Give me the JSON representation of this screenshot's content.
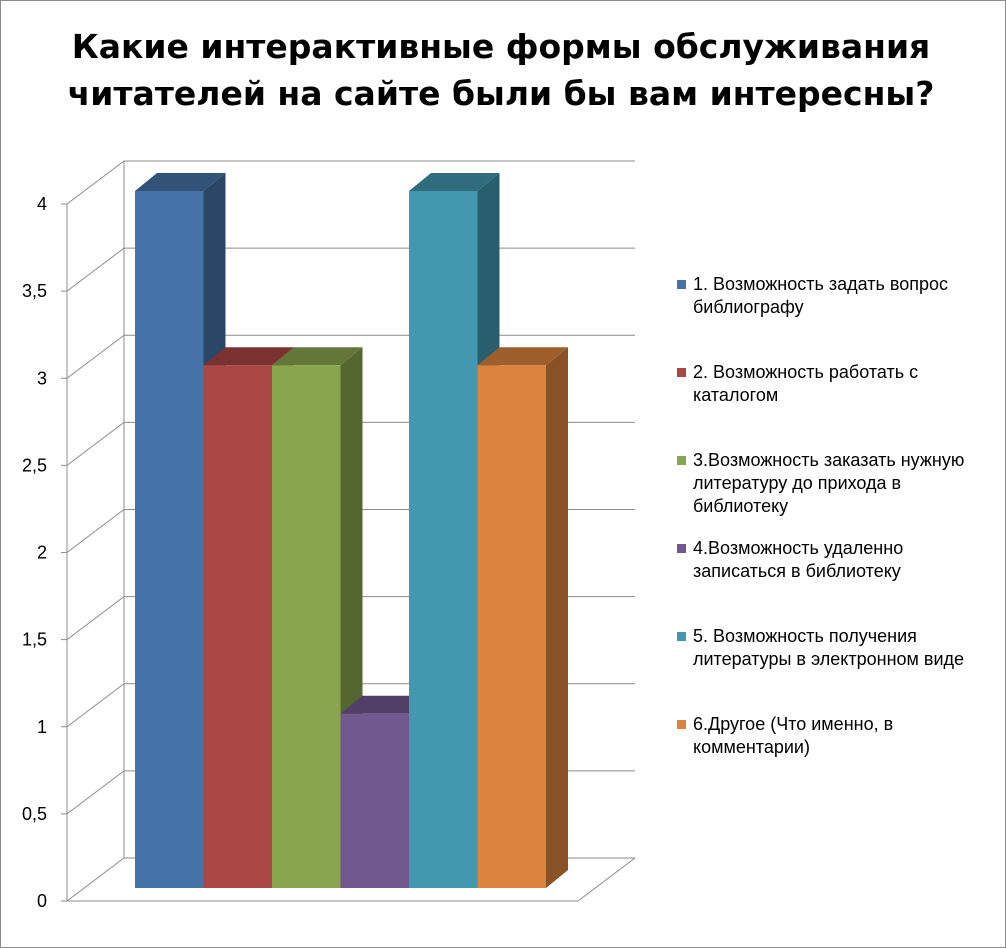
{
  "chart_data": {
    "type": "bar",
    "title": "Какие интерактивные формы обслуживания читателей на сайте были бы вам интересны?",
    "categories": [
      "1. Возможность задать вопрос библиографу",
      "2. Возможность работать с каталогом",
      "3.Возможность заказать нужную литературу до прихода в библиотеку",
      "4.Возможность удаленно записаться в библиотеку",
      "5. Возможность получения литературы в электронном виде",
      "6.Другое (Что именно, в комментарии)"
    ],
    "values": [
      4,
      3,
      3,
      1,
      4,
      3
    ],
    "colors": [
      "#4572a7",
      "#aa4643",
      "#89a54e",
      "#71588f",
      "#4198af",
      "#db843d"
    ],
    "ylim": [
      0,
      4
    ],
    "yticks": [
      "0",
      "0,5",
      "1",
      "1,5",
      "2",
      "2,5",
      "3",
      "3,5",
      "4"
    ],
    "ytick_values": [
      0,
      0.5,
      1,
      1.5,
      2,
      2.5,
      3,
      3.5,
      4
    ],
    "grid": true,
    "legend_position": "right",
    "style": "3d-column"
  }
}
